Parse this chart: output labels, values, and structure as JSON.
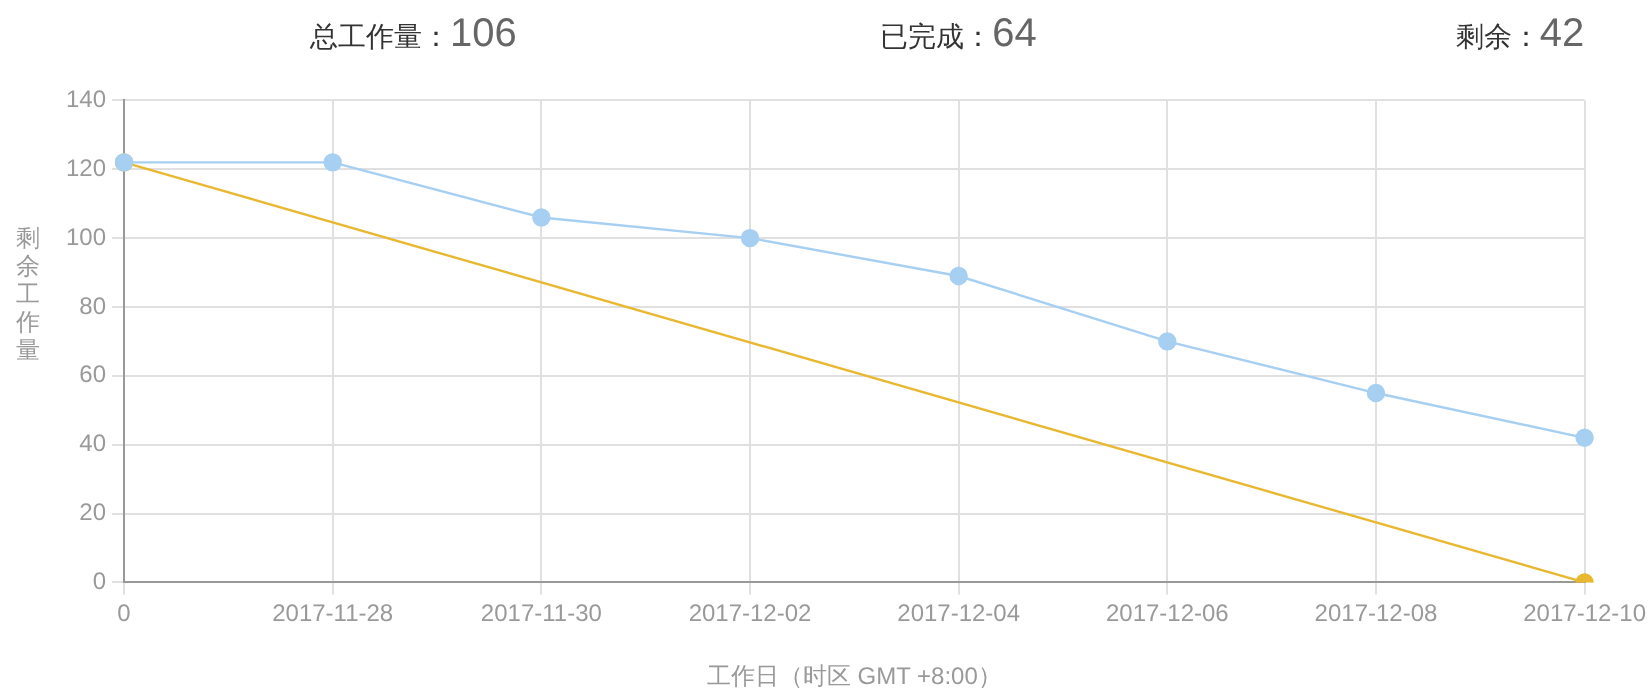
{
  "chart_data": {
    "type": "line",
    "annotations": [
      "总工作量：106",
      "已完成：64",
      "剩余：42"
    ],
    "xlabel": "工作日（时区 GMT +8:00）",
    "ylabel": "剩余工作量",
    "categories": [
      "0",
      "2017-11-28",
      "2017-11-30",
      "2017-12-02",
      "2017-12-04",
      "2017-12-06",
      "2017-12-08",
      "2017-12-10"
    ],
    "series": [
      {
        "type": "line",
        "color": "#e8b830",
        "values": [
          122,
          null,
          null,
          null,
          null,
          null,
          null,
          0
        ]
      },
      {
        "type": "line",
        "color": "#a6cff2",
        "values": [
          122,
          122,
          106,
          100,
          89,
          70,
          55,
          42
        ]
      }
    ],
    "ylim": [
      0,
      140
    ],
    "yticks": [
      0,
      20,
      40,
      60,
      80,
      100,
      120,
      140
    ],
    "grid": true,
    "legend": false,
    "marker": "circle",
    "line_style": "solid"
  }
}
